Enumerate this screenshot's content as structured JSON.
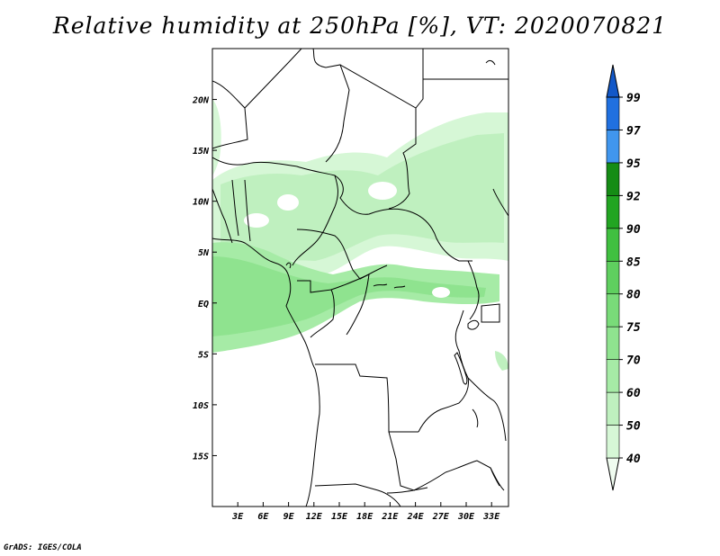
{
  "title": "Relative humidity at 250hPa [%], VT: 2020070821",
  "credit": "GrADS: IGES/COLA",
  "map": {
    "lon_range": [
      0,
      35
    ],
    "lat_range": [
      -20,
      25
    ],
    "lon_ticks": [
      {
        "value": 3,
        "label": "3E"
      },
      {
        "value": 6,
        "label": "6E"
      },
      {
        "value": 9,
        "label": "9E"
      },
      {
        "value": 12,
        "label": "12E"
      },
      {
        "value": 15,
        "label": "15E"
      },
      {
        "value": 18,
        "label": "18E"
      },
      {
        "value": 21,
        "label": "21E"
      },
      {
        "value": 24,
        "label": "24E"
      },
      {
        "value": 27,
        "label": "27E"
      },
      {
        "value": 30,
        "label": "30E"
      },
      {
        "value": 33,
        "label": "33E"
      }
    ],
    "lat_ticks": [
      {
        "value": 20,
        "label": "20N"
      },
      {
        "value": 15,
        "label": "15N"
      },
      {
        "value": 10,
        "label": "10N"
      },
      {
        "value": 5,
        "label": "5N"
      },
      {
        "value": 0,
        "label": "EQ"
      },
      {
        "value": -5,
        "label": "5S"
      },
      {
        "value": -10,
        "label": "10S"
      },
      {
        "value": -15,
        "label": "15S"
      }
    ]
  },
  "colorbar": {
    "levels": [
      "40",
      "50",
      "60",
      "70",
      "75",
      "80",
      "85",
      "90",
      "92",
      "95",
      "97",
      "99"
    ],
    "colors": [
      "#f0fcf0",
      "#d6f7d6",
      "#bff0bf",
      "#a6eba6",
      "#8fe38f",
      "#79db79",
      "#5fcf5f",
      "#40c040",
      "#22a522",
      "#158c15",
      "#4096ee",
      "#2070e0",
      "#1258c8"
    ]
  }
}
